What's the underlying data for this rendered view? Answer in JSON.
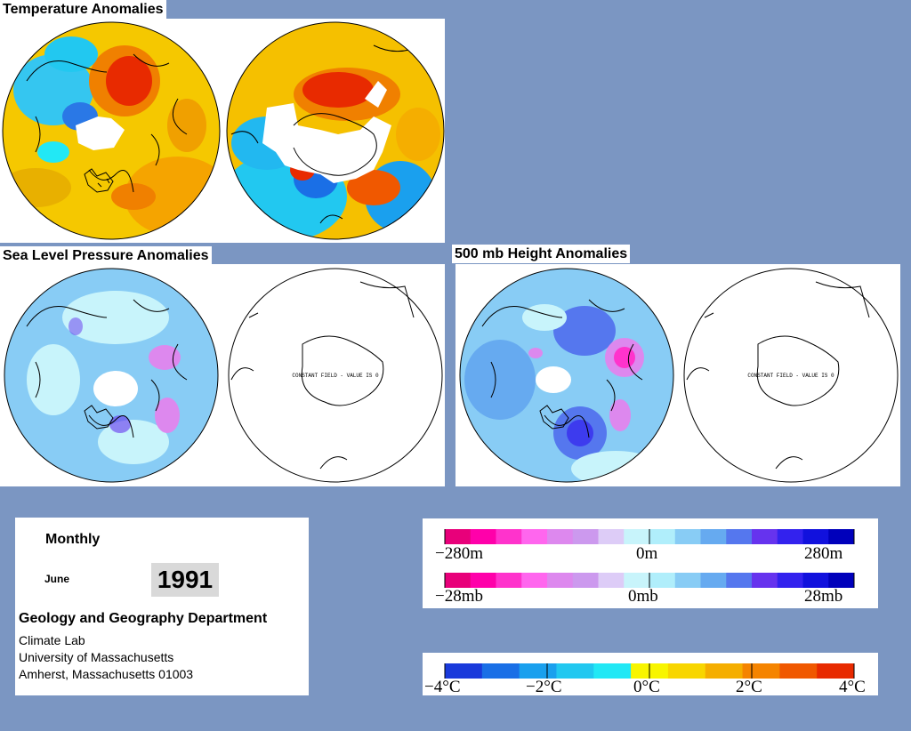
{
  "titles": {
    "temperature": "Temperature Anomalies",
    "slp": "Sea Level Pressure Anomalies",
    "height": "500 mb Height Anomalies"
  },
  "constant_field_label": "CONSTANT FIELD - VALUE IS 0",
  "info": {
    "period": "Monthly",
    "month": "June",
    "year": "1991",
    "department": "Geology and Geography Department",
    "lab": "Climate Lab",
    "university": "University of Massachusetts",
    "address": "Amherst, Massachusetts 01003"
  },
  "height_scale": {
    "left": "−280m",
    "mid": "0m",
    "right": "280m"
  },
  "pressure_scale": {
    "left": "−28mb",
    "mid": "0mb",
    "right": "28mb"
  },
  "temp_scale": {
    "l1": "−4°C",
    "l2": "−2°C",
    "l3": "0°C",
    "l4": "2°C",
    "l5": "4°C"
  },
  "colors": {
    "anomaly_scale": [
      "#e8007a",
      "#ff00aa",
      "#ff33cc",
      "#ff66ee",
      "#dd88ee",
      "#cc99ee",
      "#ddccf7",
      "#c8f4fb",
      "#b0eefb",
      "#88ccf5",
      "#66aaf0",
      "#5577ee",
      "#6633ee",
      "#3322ee",
      "#1111dd",
      "#0000bb"
    ],
    "temp_scale": [
      "#1a3adb",
      "#1a6fe6",
      "#1aa0ee",
      "#22c8f0",
      "#22e8f5",
      "#f8f500",
      "#f8d600",
      "#f5ae00",
      "#f58400",
      "#f05800",
      "#e82a00"
    ]
  }
}
